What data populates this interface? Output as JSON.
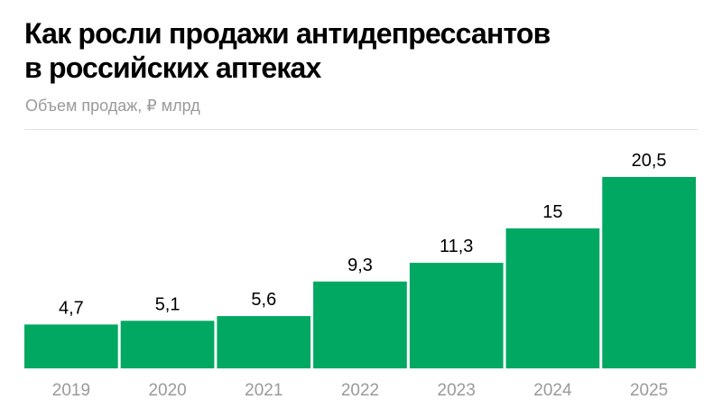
{
  "title_lines": [
    "Как росли продажи антидепрессантов",
    "в российских аптеках"
  ],
  "subtitle": "Объем продаж, ₽ млрд",
  "chart_data": {
    "type": "bar",
    "title": "Как росли продажи антидепрессантов в российских аптеках",
    "subtitle": "Объем продаж, ₽ млрд",
    "categories": [
      "2019",
      "2020",
      "2021",
      "2022",
      "2023",
      "2024",
      "2025"
    ],
    "values": [
      4.7,
      5.1,
      5.6,
      9.3,
      11.3,
      15,
      20.5
    ],
    "value_labels": [
      "4,7",
      "5,1",
      "5,6",
      "9,3",
      "11,3",
      "15",
      "20,5"
    ],
    "ylim": [
      0,
      20.5
    ],
    "grid": false,
    "bar_color": "#00a862"
  }
}
